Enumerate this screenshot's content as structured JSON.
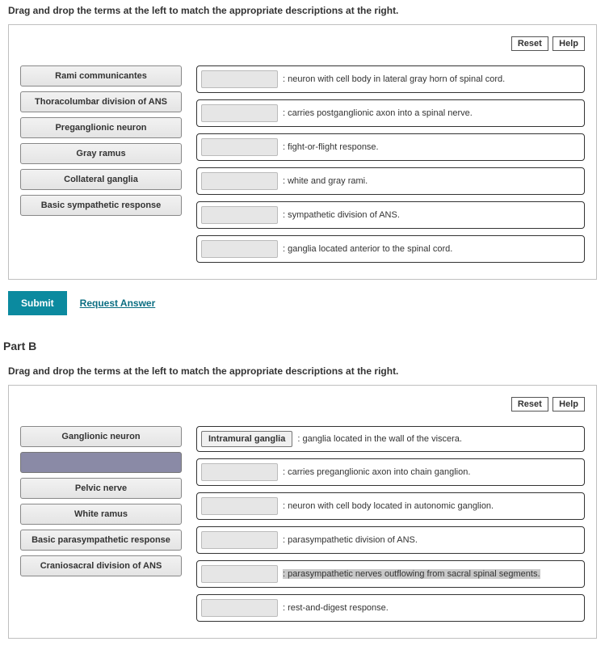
{
  "instructions": "Drag and drop the terms at the left to match the appropriate descriptions at the right.",
  "buttons": {
    "reset": "Reset",
    "help": "Help",
    "submit": "Submit",
    "request_answer": "Request Answer"
  },
  "partA": {
    "terms": [
      "Rami communicantes",
      "Thoracolumbar division of ANS",
      "Preganglionic neuron",
      "Gray ramus",
      "Collateral ganglia",
      "Basic sympathetic response"
    ],
    "targets": [
      {
        "filled": null,
        "desc": ": neuron with cell body in lateral gray horn of spinal cord."
      },
      {
        "filled": null,
        "desc": ": carries postganglionic axon into a spinal nerve."
      },
      {
        "filled": null,
        "desc": ": fight-or-flight response."
      },
      {
        "filled": null,
        "desc": ": white and gray rami."
      },
      {
        "filled": null,
        "desc": ": sympathetic division of ANS."
      },
      {
        "filled": null,
        "desc": ": ganglia located anterior to the spinal cord."
      }
    ]
  },
  "partB": {
    "heading": "Part B",
    "terms": [
      {
        "label": "Ganglionic neuron",
        "empty": false
      },
      {
        "label": "",
        "empty": true
      },
      {
        "label": "Pelvic nerve",
        "empty": false
      },
      {
        "label": "White ramus",
        "empty": false
      },
      {
        "label": "Basic parasympathetic response",
        "empty": false
      },
      {
        "label": "Craniosacral division of ANS",
        "empty": false
      }
    ],
    "targets": [
      {
        "filled": "Intramural ganglia",
        "desc": ": ganglia located in the wall of the viscera.",
        "highlight": false
      },
      {
        "filled": null,
        "desc": ": carries preganglionic axon into chain ganglion.",
        "highlight": false
      },
      {
        "filled": null,
        "desc": ": neuron with cell body located in autonomic ganglion.",
        "highlight": false
      },
      {
        "filled": null,
        "desc": ": parasympathetic division of ANS.",
        "highlight": false
      },
      {
        "filled": null,
        "desc": ": parasympathetic nerves outflowing from sacral spinal segments.",
        "highlight": true
      },
      {
        "filled": null,
        "desc": ": rest-and-digest response.",
        "highlight": false
      }
    ]
  }
}
